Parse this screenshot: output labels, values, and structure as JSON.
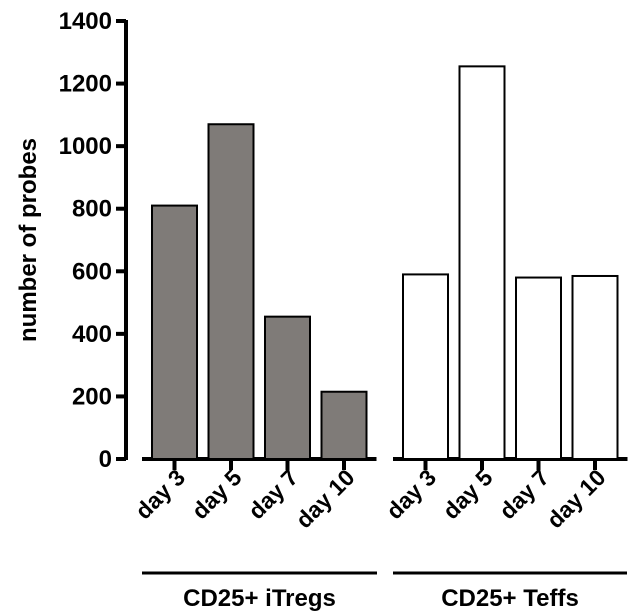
{
  "chart_data": {
    "type": "bar",
    "title": "",
    "xlabel": "",
    "ylabel": "number of probes",
    "ylim": [
      0,
      1400
    ],
    "yticks": [
      "0",
      "200",
      "400",
      "600",
      "800",
      "1000",
      "1200",
      "1400"
    ],
    "grid": false,
    "legend": "none",
    "groups": [
      {
        "name": "CD25+ iTregs",
        "fill": "#7f7b78",
        "categories": [
          "day 3",
          "day 5",
          "day 7",
          "day 10"
        ],
        "values": [
          810,
          1070,
          455,
          215
        ]
      },
      {
        "name": "CD25+ Teffs",
        "fill": "#ffffff",
        "categories": [
          "day 3",
          "day 5",
          "day 7",
          "day 10"
        ],
        "values": [
          590,
          1255,
          580,
          585
        ]
      }
    ]
  }
}
